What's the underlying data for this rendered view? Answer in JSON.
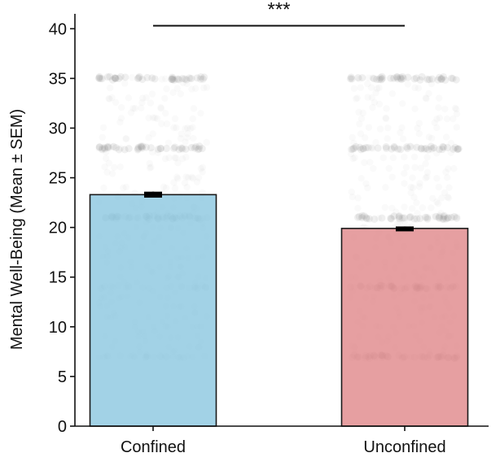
{
  "chart_data": {
    "type": "bar",
    "title": "",
    "xlabel": "",
    "ylabel": "Mental Well-Being (Mean ± SEM)",
    "ylim": [
      0,
      41.5
    ],
    "yticks": [
      0,
      5,
      10,
      15,
      20,
      25,
      30,
      35,
      40
    ],
    "categories": [
      "Confined",
      "Unconfined"
    ],
    "values": [
      23.3,
      19.9
    ],
    "sem": [
      0.3,
      0.2
    ],
    "bar_colors": [
      "#8ec8e0",
      "#e08a8c"
    ],
    "bar_edge_color": "#1a1a1a",
    "grid": false,
    "legend": "none",
    "overlay_points": {
      "color": "#808080",
      "values": [
        7,
        14,
        21,
        28,
        35
      ],
      "dense_values": {
        "Confined": [
          21,
          28,
          35
        ],
        "Unconfined": [
          7,
          14,
          21,
          28,
          35
        ]
      }
    },
    "significance": {
      "label": "***",
      "between": [
        "Confined",
        "Unconfined"
      ],
      "y": 40.3
    }
  }
}
